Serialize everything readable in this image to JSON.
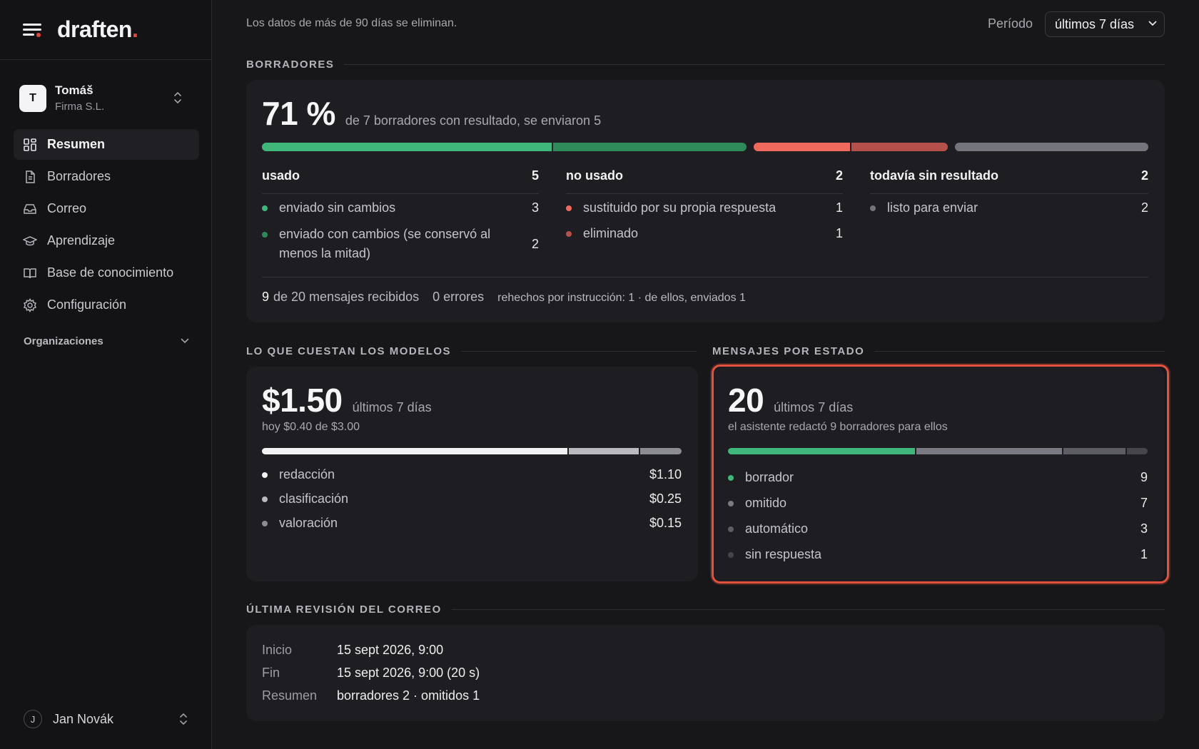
{
  "brand": {
    "name": "draften",
    "dot": "."
  },
  "account": {
    "initial": "T",
    "name": "Tomáš",
    "org": "Firma S.L."
  },
  "nav": [
    {
      "label": "Resumen",
      "icon": "grid-icon",
      "active": true
    },
    {
      "label": "Borradores",
      "icon": "file-icon",
      "active": false
    },
    {
      "label": "Correo",
      "icon": "inbox-icon",
      "active": false
    },
    {
      "label": "Aprendizaje",
      "icon": "graduation-cap-icon",
      "active": false
    },
    {
      "label": "Base de conocimiento",
      "icon": "book-icon",
      "active": false
    },
    {
      "label": "Configuración",
      "icon": "gear-icon",
      "active": false
    }
  ],
  "organizations_label": "Organizaciones",
  "user": {
    "initial": "J",
    "name": "Jan Novák"
  },
  "header": {
    "retention_note": "Los datos de más de 90 días se eliminan.",
    "period_label": "Período",
    "period_value": "últimos 7 días"
  },
  "drafts": {
    "section_title": "BORRADORES",
    "percent": "71 %",
    "summary": "de 7 borradores con resultado, se enviaron 5",
    "bar_counts": {
      "sent_unchanged": 3,
      "sent_changed": 2,
      "replaced": 1,
      "deleted": 1,
      "pending": 2
    },
    "columns": [
      {
        "title": "usado",
        "count": "5",
        "rows": [
          {
            "label": "enviado sin cambios",
            "value": "3",
            "color": "#3fb67a"
          },
          {
            "label": "enviado con cambios (se conservó al menos la mitad)",
            "value": "2",
            "color": "#2f8a5a"
          }
        ]
      },
      {
        "title": "no usado",
        "count": "2",
        "rows": [
          {
            "label": "sustituido por su propia respuesta",
            "value": "1",
            "color": "#ef6a5c"
          },
          {
            "label": "eliminado",
            "value": "1",
            "color": "#b5514a"
          }
        ]
      },
      {
        "title": "todavía sin resultado",
        "count": "2",
        "rows": [
          {
            "label": "listo para enviar",
            "value": "2",
            "color": "#74747c"
          }
        ]
      }
    ],
    "footer": {
      "received_count": "9",
      "received_text": "de 20 mensajes recibidos",
      "errors_text": "0 errores",
      "redone_text": "rehechos por instrucción: 1 · de ellos, enviados 1"
    }
  },
  "costs": {
    "section_title": "LO QUE CUESTAN LOS MODELOS",
    "total": "$1.50",
    "period": "últimos 7 días",
    "today": "hoy $0.40 de $3.00",
    "items": [
      {
        "label": "redacción",
        "value": "$1.10",
        "amount": 1.1,
        "color": "#f2f2f4"
      },
      {
        "label": "clasificación",
        "value": "$0.25",
        "amount": 0.25,
        "color": "#b9b9bf"
      },
      {
        "label": "valoración",
        "value": "$0.15",
        "amount": 0.15,
        "color": "#8c8c93"
      }
    ]
  },
  "states": {
    "section_title": "MENSAJES POR ESTADO",
    "total": "20",
    "period": "últimos 7 días",
    "note": "el asistente redactó 9 borradores para ellos",
    "items": [
      {
        "label": "borrador",
        "value": "9",
        "count": 9,
        "color": "#3fb67a"
      },
      {
        "label": "omitido",
        "value": "7",
        "count": 7,
        "color": "#7a7a82"
      },
      {
        "label": "automático",
        "value": "3",
        "count": 3,
        "color": "#5d5d64"
      },
      {
        "label": "sin respuesta",
        "value": "1",
        "count": 1,
        "color": "#45454b"
      }
    ]
  },
  "last_review": {
    "section_title": "ÚLTIMA REVISIÓN DEL CORREO",
    "rows": [
      {
        "label": "Inicio",
        "value": "15 sept 2026, 9:00"
      },
      {
        "label": "Fin",
        "value": "15 sept 2026, 9:00 (20 s)"
      },
      {
        "label": "Resumen",
        "value": "borradores 2 · omitidos 1"
      }
    ]
  },
  "colors": {
    "accent": "#e4483b",
    "green": "#3fb67a",
    "dark_green": "#2f8a5a",
    "red": "#ef6a5c",
    "dark_red": "#b5514a",
    "gray": "#74747c"
  }
}
